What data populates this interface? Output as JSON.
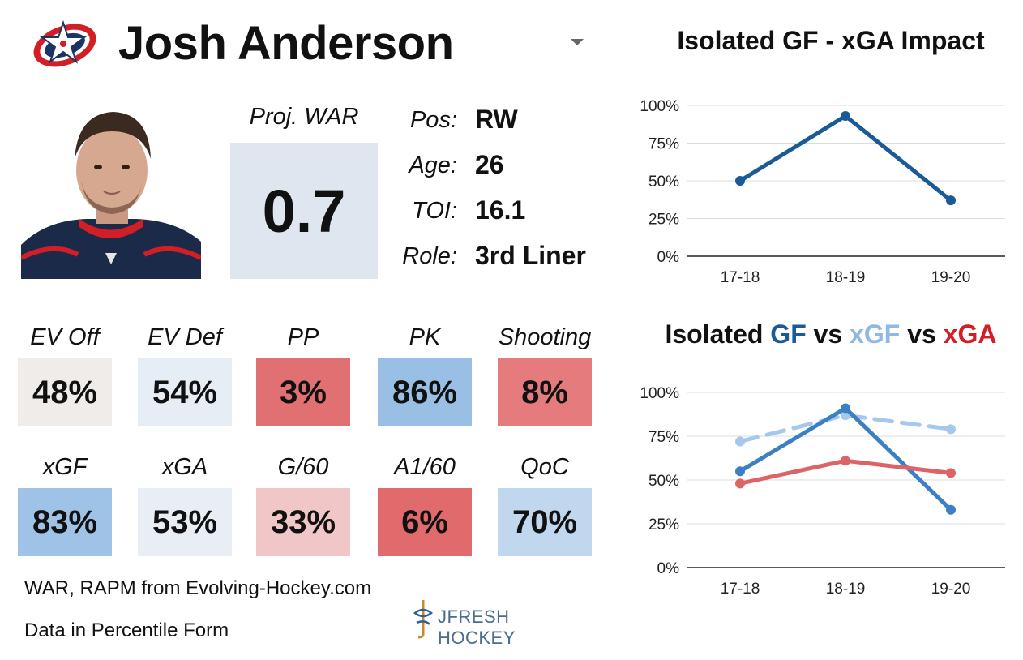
{
  "player": {
    "name": "Josh Anderson",
    "proj_war_label": "Proj. WAR",
    "proj_war_value": "0.7",
    "info": [
      {
        "label": "Pos:",
        "value": "RW"
      },
      {
        "label": "Age:",
        "value": "26"
      },
      {
        "label": "TOI:",
        "value": "16.1"
      },
      {
        "label": "Role:",
        "value": "3rd Liner"
      }
    ]
  },
  "stats_row1": [
    {
      "label": "EV Off",
      "value": "48%",
      "color": "#efecea"
    },
    {
      "label": "EV Def",
      "value": "54%",
      "color": "#e7edf4"
    },
    {
      "label": "PP",
      "value": "3%",
      "color": "#e07072"
    },
    {
      "label": "PK",
      "value": "86%",
      "color": "#99bfe4"
    },
    {
      "label": "Shooting",
      "value": "8%",
      "color": "#e57b7c"
    }
  ],
  "stats_row2": [
    {
      "label": "xGF",
      "value": "83%",
      "color": "#9fc3e6"
    },
    {
      "label": "xGA",
      "value": "53%",
      "color": "#e9eef4"
    },
    {
      "label": "G/60",
      "value": "33%",
      "color": "#f0c6c7"
    },
    {
      "label": "A1/60",
      "value": "6%",
      "color": "#e06a6c"
    },
    {
      "label": "QoC",
      "value": "70%",
      "color": "#c0d7ee"
    }
  ],
  "footer": {
    "source": "WAR, RAPM from  Evolving-Hockey.com",
    "note": "Data in Percentile Form",
    "brand": "JFRESH HOCKEY"
  },
  "chart_data": [
    {
      "type": "line",
      "title": "Isolated GF - xGA Impact",
      "categories": [
        "17-18",
        "18-19",
        "19-20"
      ],
      "series": [
        {
          "values": [
            50,
            93,
            37
          ],
          "color": "#1a5a96",
          "style": "solid"
        }
      ],
      "yticks": [
        "0%",
        "25%",
        "50%",
        "75%",
        "100%"
      ],
      "ylim": [
        0,
        100
      ],
      "grid": true
    },
    {
      "type": "line",
      "title_parts": [
        {
          "text": "Isolated ",
          "role": "plain"
        },
        {
          "text": "GF",
          "role": "blue"
        },
        {
          "text": " vs ",
          "role": "plain"
        },
        {
          "text": "xGF",
          "role": "lblue"
        },
        {
          "text": " vs ",
          "role": "plain"
        },
        {
          "text": "xGA",
          "role": "red"
        }
      ],
      "categories": [
        "17-18",
        "18-19",
        "19-20"
      ],
      "series": [
        {
          "values": [
            72,
            87,
            79
          ],
          "color": "#a6c8ea",
          "style": "dashed"
        },
        {
          "values": [
            55,
            91,
            33
          ],
          "color": "#3d7fc4",
          "style": "solid"
        },
        {
          "values": [
            48,
            61,
            54
          ],
          "color": "#dd6466",
          "style": "solid"
        }
      ],
      "yticks": [
        "0%",
        "25%",
        "50%",
        "75%",
        "100%"
      ],
      "ylim": [
        0,
        100
      ],
      "grid": true
    }
  ]
}
